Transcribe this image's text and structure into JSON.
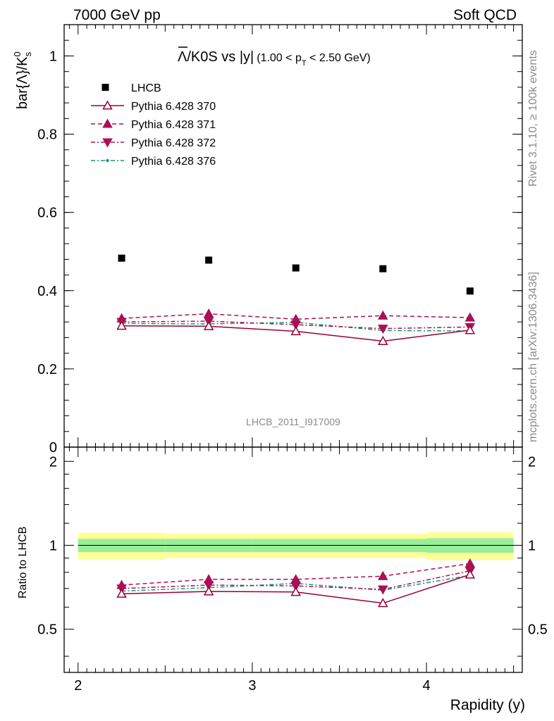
{
  "header": {
    "left": "7000 GeV pp",
    "right": "Soft QCD"
  },
  "side_labels": {
    "top": "Rivet 3.1.10, ≥ 100k events",
    "bottom": "mcplots.cern.ch [arXiv:1306.3436]"
  },
  "watermark": "LHCB_2011_I917009",
  "chart_data": {
    "type": "line",
    "title_main": "Λ/K0S vs |y|",
    "title_cut": "(1.00 < p",
    "title_cut_sub": "T",
    "title_cut_end": " < 2.50 GeV)",
    "ylabel_main": "bar{Λ}/K",
    "ylabel_sup": "0",
    "ylabel_sub": "s",
    "xlabel": "Rapidity (y)",
    "ratio_ylabel": "Ratio to LHCB",
    "xlim": [
      1.92,
      4.55
    ],
    "ylim": [
      0,
      1.08
    ],
    "ratio_ylim": [
      0.35,
      2.25
    ],
    "x_ticks": [
      2,
      3,
      4
    ],
    "x_tick_labels": [
      "2",
      "3",
      "4"
    ],
    "y_ticks": [
      0,
      0.2,
      0.4,
      0.6,
      0.8,
      1
    ],
    "y_tick_labels": [
      "0",
      "0.2",
      "0.4",
      "0.6",
      "0.8",
      "1"
    ],
    "ratio_y_ticks": [
      0.5,
      1,
      2
    ],
    "ratio_y_tick_labels": [
      "0.5",
      "1",
      "2"
    ],
    "x": [
      2.25,
      2.75,
      3.25,
      3.75,
      4.25
    ],
    "bin_edges": [
      2.0,
      2.5,
      3.0,
      3.5,
      4.0,
      4.5
    ],
    "data": {
      "name": "LHCB",
      "values": [
        0.483,
        0.478,
        0.458,
        0.456,
        0.399
      ],
      "color": "#000000"
    },
    "band_inner": [
      0.055,
      0.055,
      0.055,
      0.055,
      0.06
    ],
    "band_outer": [
      0.11,
      0.1,
      0.1,
      0.1,
      0.115
    ],
    "band_inner_color": "#99ee99",
    "band_outer_color": "#ffff99",
    "series": [
      {
        "name": "Pythia 6.428 370",
        "values": [
          0.31,
          0.309,
          0.296,
          0.271,
          0.299
        ],
        "ratio": [
          0.67,
          0.683,
          0.68,
          0.62,
          0.785
        ],
        "err": [
          0.006,
          0.006,
          0.006,
          0.006,
          0.008
        ],
        "color": "#990033",
        "marker": "triangle-up-open",
        "dash": ""
      },
      {
        "name": "Pythia 6.428 371",
        "values": [
          0.329,
          0.341,
          0.327,
          0.336,
          0.331
        ],
        "ratio": [
          0.72,
          0.755,
          0.755,
          0.775,
          0.86
        ],
        "err": [
          0.007,
          0.008,
          0.007,
          0.008,
          0.01
        ],
        "color": "#aa1155",
        "marker": "triangle-up-filled",
        "dash": "6,4"
      },
      {
        "name": "Pythia 6.428 372",
        "values": [
          0.32,
          0.322,
          0.313,
          0.303,
          0.307
        ],
        "ratio": [
          0.7,
          0.72,
          0.715,
          0.695,
          0.81
        ],
        "err": [
          0.006,
          0.006,
          0.006,
          0.007,
          0.008
        ],
        "color": "#aa1155",
        "marker": "triangle-down-filled",
        "dash": "6,3,2,3"
      },
      {
        "name": "Pythia 6.428 376",
        "values": [
          0.316,
          0.315,
          0.319,
          0.298,
          0.297
        ],
        "ratio": [
          0.685,
          0.705,
          0.73,
          0.69,
          0.78
        ],
        "err": [
          0.006,
          0.006,
          0.006,
          0.006,
          0.008
        ],
        "color": "#119977",
        "marker": "dot",
        "dash": "6,3,2,3"
      }
    ]
  }
}
